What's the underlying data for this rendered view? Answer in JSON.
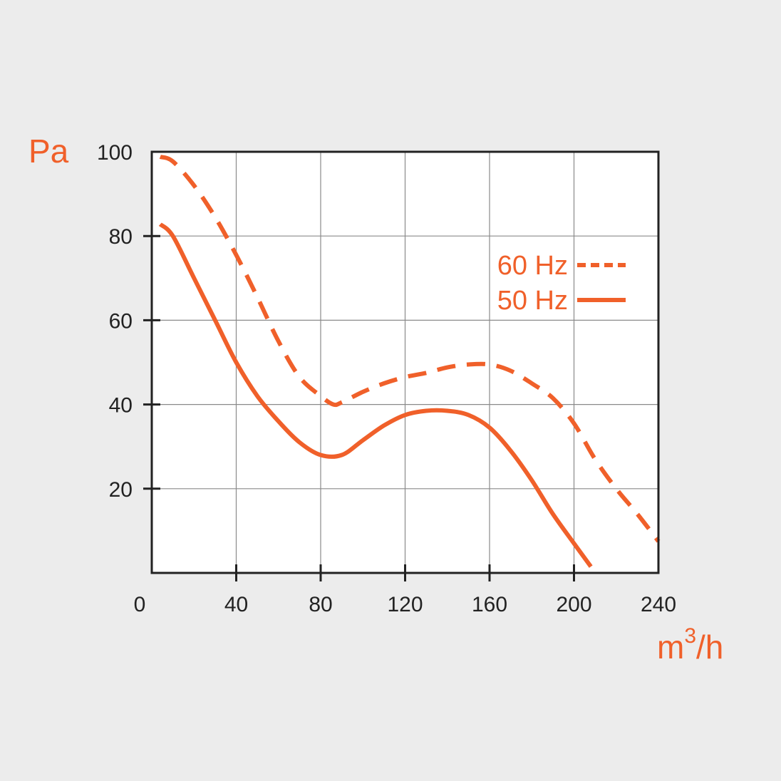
{
  "colors": {
    "background": "#ececec",
    "plot_background": "#ffffff",
    "grid": "#8a8a8a",
    "axis": "#222222",
    "accent": "#f0602a"
  },
  "chart_data": {
    "type": "line",
    "xlabel": "m",
    "xlabel_sup": "3",
    "xlabel_suffix": "/h",
    "ylabel": "Pa",
    "xlim": [
      0,
      240
    ],
    "ylim": [
      0,
      100
    ],
    "xticks": [
      0,
      40,
      80,
      120,
      160,
      200,
      240
    ],
    "yticks": [
      20,
      40,
      60,
      80,
      100
    ],
    "grid": true,
    "legend_position": "top-right",
    "series": [
      {
        "name": "60 Hz",
        "style": "dashed",
        "x": [
          4,
          10,
          20,
          30,
          40,
          50,
          60,
          70,
          80,
          86,
          90,
          100,
          110,
          120,
          130,
          140,
          150,
          160,
          170,
          180,
          190,
          200,
          210,
          220,
          230,
          240
        ],
        "y": [
          98.8,
          97.7,
          92,
          84.5,
          75.5,
          65.5,
          55,
          46.5,
          42,
          40,
          40.5,
          43,
          45,
          46.5,
          47.5,
          48.8,
          49.5,
          49.5,
          48,
          45,
          41.5,
          35.5,
          27,
          20,
          14,
          7.5
        ]
      },
      {
        "name": "50 Hz",
        "style": "solid",
        "x": [
          4,
          10,
          20,
          30,
          40,
          50,
          60,
          70,
          80,
          90,
          100,
          110,
          120,
          130,
          140,
          150,
          160,
          170,
          180,
          190,
          200,
          208
        ],
        "y": [
          82.8,
          80,
          70,
          60,
          50,
          42,
          36,
          31,
          28,
          28,
          31.5,
          35,
          37.5,
          38.5,
          38.5,
          37.5,
          34.5,
          29,
          22,
          14,
          7,
          1.5
        ]
      }
    ]
  }
}
